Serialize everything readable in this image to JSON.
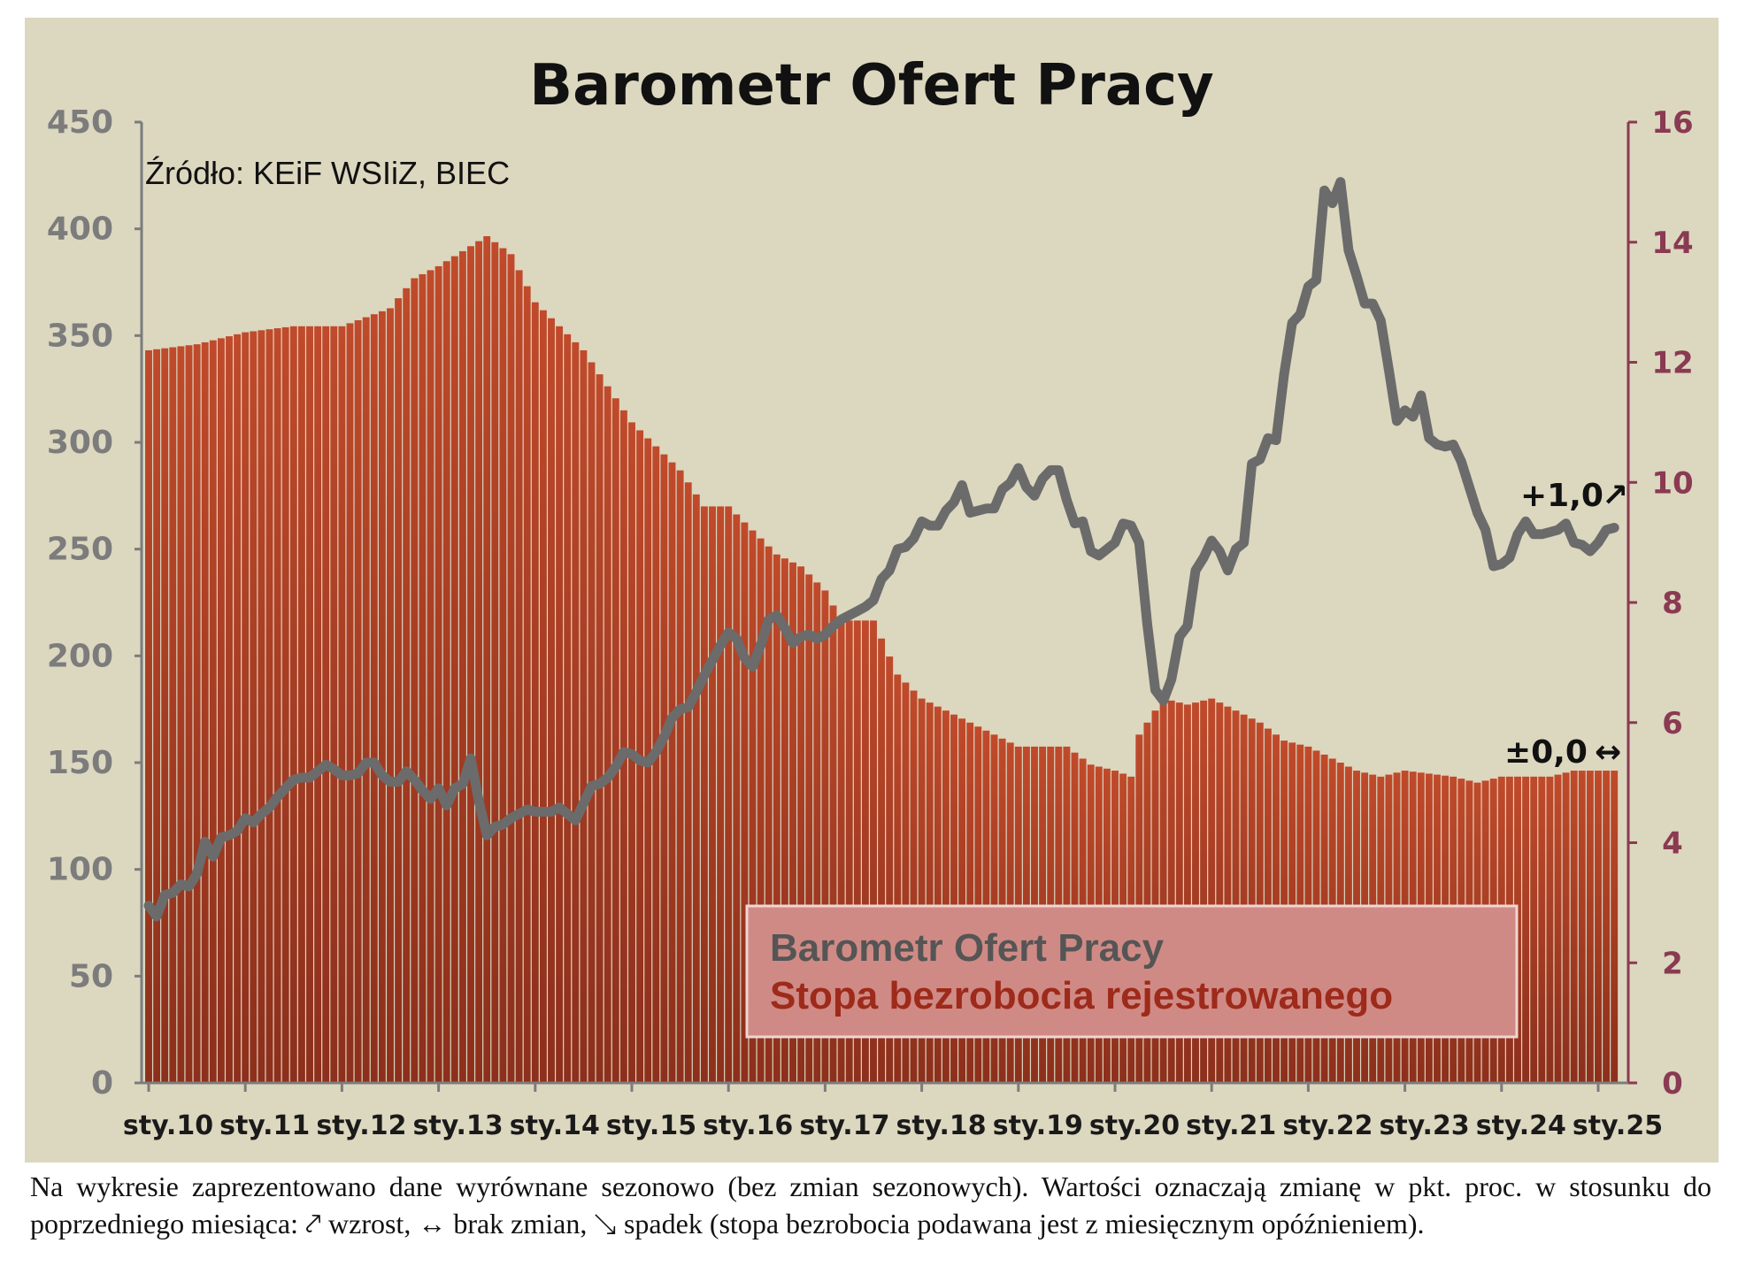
{
  "chart_data": {
    "type": "bar+line",
    "title": "Barometr Ofert Pracy",
    "source": "Źródło: KEiF WSIiZ, BIEC",
    "left_axis": {
      "min": 0,
      "max": 450,
      "ticks": [
        "0",
        "50",
        "100",
        "150",
        "200",
        "250",
        "300",
        "350",
        "400",
        "450"
      ]
    },
    "right_axis": {
      "min": 0,
      "max": 16,
      "ticks": [
        "0",
        "2",
        "4",
        "6",
        "8",
        "10",
        "12",
        "14",
        "16"
      ]
    },
    "x_ticks": [
      "sty.10",
      "sty.11",
      "sty.12",
      "sty.13",
      "sty.14",
      "sty.15",
      "sty.16",
      "sty.17",
      "sty.18",
      "sty.19",
      "sty.20",
      "sty.21",
      "sty.22",
      "sty.23",
      "sty.24",
      "sty.25"
    ],
    "x_start": "2010-01",
    "series": [
      {
        "name": "Barometr Ofert Pracy",
        "kind": "line",
        "axis": "left",
        "color": "#6b6b6b",
        "anchors": [
          [
            "2010-01",
            83
          ],
          [
            "2010-02",
            78
          ],
          [
            "2010-03",
            88
          ],
          [
            "2010-04",
            89
          ],
          [
            "2010-05",
            93
          ],
          [
            "2010-06",
            92
          ],
          [
            "2010-07",
            98
          ],
          [
            "2010-08",
            113
          ],
          [
            "2010-09",
            106
          ],
          [
            "2010-10",
            115
          ],
          [
            "2010-11",
            116
          ],
          [
            "2010-12",
            118
          ],
          [
            "2011-01",
            124
          ],
          [
            "2011-02",
            122
          ],
          [
            "2011-03",
            126
          ],
          [
            "2011-04",
            129
          ],
          [
            "2011-05",
            134
          ],
          [
            "2011-06",
            138
          ],
          [
            "2011-07",
            142
          ],
          [
            "2011-08",
            143
          ],
          [
            "2011-09",
            143
          ],
          [
            "2011-10",
            146
          ],
          [
            "2011-11",
            149
          ],
          [
            "2011-12",
            147
          ],
          [
            "2012-01",
            144
          ],
          [
            "2012-02",
            144
          ],
          [
            "2012-03",
            145
          ],
          [
            "2012-04",
            150
          ],
          [
            "2012-05",
            150
          ],
          [
            "2012-06",
            144
          ],
          [
            "2012-07",
            141
          ],
          [
            "2012-08",
            141
          ],
          [
            "2012-09",
            146
          ],
          [
            "2012-10",
            142
          ],
          [
            "2012-11",
            137
          ],
          [
            "2012-12",
            133
          ],
          [
            "2013-01",
            138
          ],
          [
            "2013-02",
            130
          ],
          [
            "2013-03",
            138
          ],
          [
            "2013-04",
            140
          ],
          [
            "2013-05",
            152
          ],
          [
            "2013-06",
            132
          ],
          [
            "2013-07",
            116
          ],
          [
            "2013-08",
            120
          ],
          [
            "2013-09",
            121
          ],
          [
            "2013-10",
            124
          ],
          [
            "2013-11",
            126
          ],
          [
            "2013-12",
            128
          ],
          [
            "2014-01",
            127
          ],
          [
            "2014-02",
            127
          ],
          [
            "2014-03",
            127
          ],
          [
            "2014-04",
            129
          ],
          [
            "2014-05",
            126
          ],
          [
            "2014-06",
            123
          ],
          [
            "2014-07",
            131
          ],
          [
            "2014-08",
            139
          ],
          [
            "2014-09",
            140
          ],
          [
            "2014-10",
            143
          ],
          [
            "2014-11",
            148
          ],
          [
            "2014-12",
            155
          ],
          [
            "2015-01",
            154
          ],
          [
            "2015-02",
            151
          ],
          [
            "2015-03",
            150
          ],
          [
            "2015-04",
            155
          ],
          [
            "2015-05",
            162
          ],
          [
            "2015-06",
            171
          ],
          [
            "2015-07",
            175
          ],
          [
            "2015-08",
            176
          ],
          [
            "2015-09",
            183
          ],
          [
            "2015-10",
            191
          ],
          [
            "2015-11",
            198
          ],
          [
            "2015-12",
            205
          ],
          [
            "2016-01",
            211
          ],
          [
            "2016-02",
            208
          ],
          [
            "2016-03",
            199
          ],
          [
            "2016-04",
            195
          ],
          [
            "2016-05",
            205
          ],
          [
            "2016-06",
            217
          ],
          [
            "2016-07",
            219
          ],
          [
            "2016-08",
            213
          ],
          [
            "2016-09",
            206
          ],
          [
            "2016-10",
            209
          ],
          [
            "2016-11",
            210
          ],
          [
            "2016-12",
            208
          ],
          [
            "2017-01",
            210
          ],
          [
            "2017-02",
            214
          ],
          [
            "2017-03",
            217
          ],
          [
            "2017-04",
            219
          ],
          [
            "2017-05",
            221
          ],
          [
            "2017-06",
            223
          ],
          [
            "2017-07",
            226
          ],
          [
            "2017-08",
            236
          ],
          [
            "2017-09",
            240
          ],
          [
            "2017-10",
            250
          ],
          [
            "2017-11",
            251
          ],
          [
            "2017-12",
            255
          ],
          [
            "2018-01",
            263
          ],
          [
            "2018-02",
            261
          ],
          [
            "2018-03",
            261
          ],
          [
            "2018-04",
            268
          ],
          [
            "2018-05",
            272
          ],
          [
            "2018-06",
            280
          ],
          [
            "2018-07",
            267
          ],
          [
            "2018-08",
            268
          ],
          [
            "2018-09",
            269
          ],
          [
            "2018-10",
            269
          ],
          [
            "2018-11",
            278
          ],
          [
            "2018-12",
            281
          ],
          [
            "2019-01",
            288
          ],
          [
            "2019-02",
            279
          ],
          [
            "2019-03",
            275
          ],
          [
            "2019-04",
            283
          ],
          [
            "2019-05",
            287
          ],
          [
            "2019-06",
            287
          ],
          [
            "2019-07",
            273
          ],
          [
            "2019-08",
            262
          ],
          [
            "2019-09",
            263
          ],
          [
            "2019-10",
            249
          ],
          [
            "2019-11",
            247
          ],
          [
            "2019-12",
            250
          ],
          [
            "2020-01",
            253
          ],
          [
            "2020-02",
            262
          ],
          [
            "2020-03",
            261
          ],
          [
            "2020-04",
            253
          ],
          [
            "2020-05",
            215
          ],
          [
            "2020-06",
            184
          ],
          [
            "2020-07",
            179
          ],
          [
            "2020-08",
            189
          ],
          [
            "2020-09",
            209
          ],
          [
            "2020-10",
            214
          ],
          [
            "2020-11",
            240
          ],
          [
            "2020-12",
            246
          ],
          [
            "2021-01",
            254
          ],
          [
            "2021-02",
            249
          ],
          [
            "2021-03",
            240
          ],
          [
            "2021-04",
            250
          ],
          [
            "2021-05",
            253
          ],
          [
            "2021-06",
            290
          ],
          [
            "2021-07",
            292
          ],
          [
            "2021-08",
            302
          ],
          [
            "2021-09",
            301
          ],
          [
            "2021-10",
            332
          ],
          [
            "2021-11",
            356
          ],
          [
            "2021-12",
            360
          ],
          [
            "2022-01",
            373
          ],
          [
            "2022-02",
            376
          ],
          [
            "2022-03",
            418
          ],
          [
            "2022-04",
            412
          ],
          [
            "2022-05",
            422
          ],
          [
            "2022-06",
            390
          ],
          [
            "2022-07",
            378
          ],
          [
            "2022-08",
            365
          ],
          [
            "2022-09",
            365
          ],
          [
            "2022-10",
            357
          ],
          [
            "2022-11",
            334
          ],
          [
            "2022-12",
            310
          ],
          [
            "2023-01",
            315
          ],
          [
            "2023-02",
            312
          ],
          [
            "2023-03",
            322
          ],
          [
            "2023-04",
            302
          ],
          [
            "2023-05",
            299
          ],
          [
            "2023-06",
            298
          ],
          [
            "2023-07",
            299
          ],
          [
            "2023-08",
            291
          ],
          [
            "2023-09",
            279
          ],
          [
            "2023-10",
            267
          ],
          [
            "2023-11",
            259
          ],
          [
            "2023-12",
            242
          ],
          [
            "2024-01",
            243
          ],
          [
            "2024-02",
            246
          ],
          [
            "2024-03",
            257
          ],
          [
            "2024-04",
            263
          ],
          [
            "2024-05",
            257
          ],
          [
            "2024-06",
            257
          ],
          [
            "2024-07",
            258
          ],
          [
            "2024-08",
            259
          ],
          [
            "2024-09",
            262
          ],
          [
            "2024-10",
            253
          ],
          [
            "2024-11",
            252
          ],
          [
            "2024-12",
            249
          ],
          [
            "2025-01",
            253
          ],
          [
            "2025-02",
            259
          ],
          [
            "2025-03",
            260
          ]
        ]
      },
      {
        "name": "Stopa bezrobocia rejestrowanego",
        "kind": "bar",
        "axis": "right",
        "color": "#b84428",
        "anchors": [
          [
            "2010-01",
            12.2
          ],
          [
            "2010-07",
            12.3
          ],
          [
            "2011-01",
            12.5
          ],
          [
            "2011-07",
            12.6
          ],
          [
            "2012-01",
            12.6
          ],
          [
            "2012-07",
            12.9
          ],
          [
            "2012-10",
            13.4
          ],
          [
            "2013-01",
            13.6
          ],
          [
            "2013-07",
            14.1
          ],
          [
            "2013-10",
            13.8
          ],
          [
            "2014-01",
            13.0
          ],
          [
            "2014-07",
            12.2
          ],
          [
            "2014-10",
            11.6
          ],
          [
            "2015-01",
            11.0
          ],
          [
            "2015-07",
            10.2
          ],
          [
            "2015-10",
            9.6
          ],
          [
            "2016-01",
            9.6
          ],
          [
            "2016-07",
            8.8
          ],
          [
            "2016-10",
            8.6
          ],
          [
            "2017-01",
            8.2
          ],
          [
            "2017-03",
            7.7
          ],
          [
            "2017-07",
            7.7
          ],
          [
            "2017-10",
            6.8
          ],
          [
            "2018-01",
            6.4
          ],
          [
            "2018-07",
            6.0
          ],
          [
            "2018-10",
            5.8
          ],
          [
            "2019-01",
            5.6
          ],
          [
            "2019-07",
            5.6
          ],
          [
            "2019-10",
            5.3
          ],
          [
            "2020-01",
            5.2
          ],
          [
            "2020-03",
            5.1
          ],
          [
            "2020-04",
            5.8
          ],
          [
            "2020-07",
            6.4
          ],
          [
            "2020-10",
            6.3
          ],
          [
            "2021-01",
            6.4
          ],
          [
            "2021-07",
            6.0
          ],
          [
            "2021-10",
            5.7
          ],
          [
            "2022-01",
            5.6
          ],
          [
            "2022-07",
            5.2
          ],
          [
            "2022-10",
            5.1
          ],
          [
            "2023-01",
            5.2
          ],
          [
            "2023-07",
            5.1
          ],
          [
            "2023-10",
            5.0
          ],
          [
            "2024-01",
            5.1
          ],
          [
            "2024-07",
            5.1
          ],
          [
            "2024-10",
            5.2
          ],
          [
            "2025-01",
            5.2
          ],
          [
            "2025-03",
            5.2
          ]
        ]
      }
    ],
    "annotations": [
      {
        "text": "+1,0",
        "arrow": "↗",
        "arrow_color": "#e03020"
      },
      {
        "text": "±0,0",
        "arrow": "↔",
        "arrow_color": "#777777"
      }
    ],
    "legend": {
      "placement": "bottom-right",
      "items": [
        {
          "label": "Barometr Ofert Pracy",
          "color": "#555555"
        },
        {
          "label": "Stopa bezrobocia rejestrowanego",
          "color": "#9d2a1a"
        }
      ]
    },
    "background": "#dcd7bf",
    "grid": false
  },
  "footnote": "Na wykresie zaprezentowano dane wyrównane sezonowo (bez zmian sezonowych). Wartości oznaczają zmianę w pkt. proc. w stosunku do poprzedniego miesiąca: ⤤ wzrost, ↔ brak zmian, ↘ spadek (stopa bezrobocia podawana jest z miesięcznym opóźnieniem)."
}
